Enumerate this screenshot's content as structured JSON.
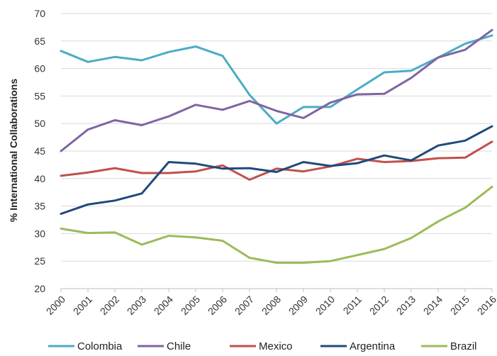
{
  "chart_data": {
    "type": "line",
    "title": "",
    "xlabel": "",
    "ylabel": "% International Collaborations",
    "ylim": [
      20,
      70
    ],
    "yticks": [
      20,
      25,
      30,
      35,
      40,
      45,
      50,
      55,
      60,
      65,
      70
    ],
    "grid": true,
    "legend_position": "bottom",
    "x": [
      "2000",
      "2001",
      "2002",
      "2003",
      "2004",
      "2005",
      "2006",
      "2007",
      "2008",
      "2009",
      "2010",
      "2011",
      "2012",
      "2013",
      "2014",
      "2015",
      "2016"
    ],
    "series": [
      {
        "name": "Colombia",
        "color": "#4bacc6",
        "values": [
          63.2,
          61.2,
          62.1,
          61.5,
          63.0,
          64.0,
          62.3,
          55.2,
          50.0,
          53.0,
          53.0,
          56.2,
          59.3,
          59.6,
          62.0,
          64.5,
          66.0
        ]
      },
      {
        "name": "Chile",
        "color": "#8064a2",
        "values": [
          45.0,
          48.9,
          50.6,
          49.7,
          51.3,
          53.4,
          52.5,
          54.1,
          52.3,
          51.0,
          53.8,
          55.3,
          55.4,
          58.3,
          62.0,
          63.4,
          67.0
        ]
      },
      {
        "name": "Mexico",
        "color": "#c0504d",
        "values": [
          40.5,
          41.1,
          41.9,
          41.0,
          41.0,
          41.3,
          42.4,
          39.8,
          41.8,
          41.3,
          42.2,
          43.6,
          43.0,
          43.2,
          43.7,
          43.8,
          46.7
        ]
      },
      {
        "name": "Argentina",
        "color": "#1f497d",
        "values": [
          33.6,
          35.3,
          36.0,
          37.3,
          43.0,
          42.7,
          41.8,
          41.9,
          41.2,
          43.0,
          42.3,
          42.8,
          44.2,
          43.3,
          46.0,
          46.9,
          49.5
        ]
      },
      {
        "name": "Brazil",
        "color": "#9bbb59",
        "values": [
          30.9,
          30.1,
          30.2,
          28.0,
          29.6,
          29.3,
          28.7,
          25.6,
          24.7,
          24.7,
          25.0,
          26.1,
          27.2,
          29.2,
          32.2,
          34.7,
          38.5
        ]
      }
    ]
  }
}
